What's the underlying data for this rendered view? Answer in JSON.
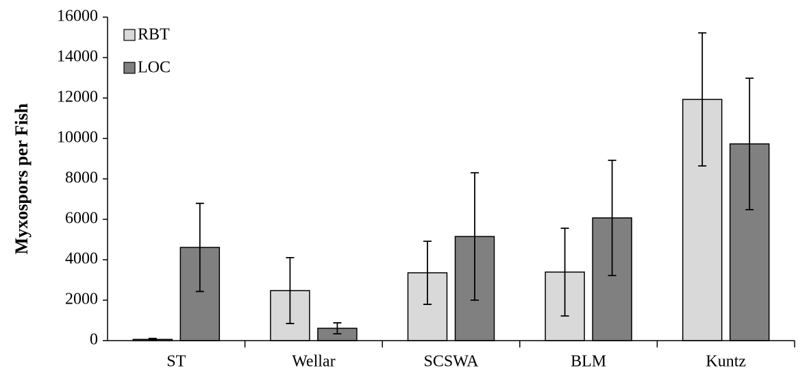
{
  "chart_data": {
    "type": "bar",
    "y_label": "Myxospors per Fish",
    "categories": [
      "ST",
      "Wellar",
      "SCSWA",
      "BLM",
      "Kuntz"
    ],
    "series": [
      {
        "name": "RBT",
        "color": "#d9d9d9",
        "values": [
          60,
          2475,
          3355,
          3390,
          11930
        ],
        "errors": [
          50,
          1630,
          1560,
          2170,
          3290
        ]
      },
      {
        "name": "LOC",
        "color": "#808080",
        "values": [
          4610,
          610,
          5150,
          6070,
          9730
        ],
        "errors": [
          2180,
          270,
          3150,
          2850,
          3250
        ]
      }
    ],
    "ylim": [
      0,
      16000
    ],
    "yticks": [
      0,
      2000,
      4000,
      6000,
      8000,
      10000,
      12000,
      14000,
      16000
    ],
    "legend": "top-left"
  }
}
